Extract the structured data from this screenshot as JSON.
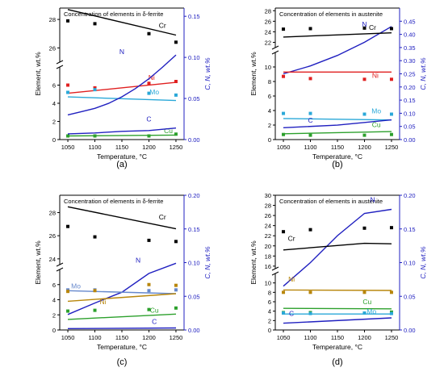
{
  "figure": {
    "panel_tags": [
      "(a)",
      "(b)",
      "(c)",
      "(d)"
    ]
  },
  "chart_data": [
    {
      "type": "line",
      "panel": "(a)",
      "title": "Concentration of elements in δ-ferrite",
      "xlabel": "Temperature, °C",
      "ylabel_left": "Element, wt.%",
      "ylabel_right": "C, N, wt.%",
      "x_ticks": [
        1050,
        1100,
        1150,
        1200,
        1250
      ],
      "xlim": [
        1035,
        1265
      ],
      "y_left_lower": {
        "range": [
          0,
          8
        ],
        "ticks": [
          0,
          2,
          4,
          6
        ]
      },
      "y_left_upper": {
        "range": [
          25,
          28.8
        ],
        "ticks": [
          26,
          28
        ]
      },
      "y_right": {
        "range": [
          0,
          0.16
        ],
        "ticks": [
          0,
          0.05,
          0.1,
          0.15
        ],
        "tick_labels": [
          "0.00",
          "0.05",
          "0.10",
          "0.15"
        ]
      },
      "series": [
        {
          "name": "Cr",
          "axis": "left",
          "color": "#000000",
          "label_at": {
            "x": 1225,
            "y": 27.4
          },
          "line": {
            "x": [
              1050,
              1250
            ],
            "y": [
              28.7,
              26.9
            ]
          },
          "points": {
            "x": [
              1050,
              1100,
              1200,
              1250
            ],
            "y": [
              27.9,
              27.7,
              27.0,
              26.4
            ]
          }
        },
        {
          "name": "Ni",
          "axis": "left",
          "color": "#e02020",
          "label_at": {
            "x": 1205,
            "y": 6.6
          },
          "line": {
            "x": [
              1050,
              1250
            ],
            "y": [
              5.1,
              6.3
            ]
          },
          "points": {
            "x": [
              1050,
              1100,
              1200,
              1250
            ],
            "y": [
              6.0,
              5.7,
              6.2,
              6.4
            ]
          }
        },
        {
          "name": "Mo",
          "axis": "left",
          "color": "#2aa8d8",
          "label_at": {
            "x": 1210,
            "y": 5.0
          },
          "line": {
            "x": [
              1050,
              1250
            ],
            "y": [
              4.7,
              4.3
            ]
          },
          "points": {
            "x": [
              1050,
              1100,
              1200,
              1250
            ],
            "y": [
              5.2,
              5.5,
              5.1,
              4.9
            ]
          }
        },
        {
          "name": "Cu",
          "axis": "left",
          "color": "#2ca02c",
          "label_at": {
            "x": 1236,
            "y": 0.7
          },
          "line": {
            "x": [
              1050,
              1250
            ],
            "y": [
              0.4,
              0.5
            ]
          },
          "points": {
            "x": [
              1050,
              1100,
              1200,
              1250
            ],
            "y": [
              0.4,
              0.4,
              0.4,
              0.6
            ]
          }
        },
        {
          "name": "N",
          "axis": "right",
          "color": "#2020c0",
          "label_at": {
            "x": 1150,
            "y": 0.104
          },
          "line": {
            "x": [
              1050,
              1075,
              1100,
              1125,
              1150,
              1175,
              1200,
              1225,
              1250
            ],
            "y": [
              0.03,
              0.034,
              0.038,
              0.044,
              0.052,
              0.062,
              0.074,
              0.088,
              0.103
            ]
          }
        },
        {
          "name": "C",
          "axis": "right",
          "color": "#2020c0",
          "label_at": {
            "x": 1200,
            "y": 0.022
          },
          "line": {
            "x": [
              1050,
              1100,
              1150,
              1200,
              1250
            ],
            "y": [
              0.007,
              0.008,
              0.01,
              0.011,
              0.014
            ]
          }
        }
      ]
    },
    {
      "type": "line",
      "panel": "(b)",
      "title": "Concentration of elements in austenite",
      "xlabel": "Temperature, °C",
      "ylabel_left": "Element, wt.%",
      "ylabel_right": "C, N, wt.%",
      "x_ticks": [
        1050,
        1100,
        1150,
        1200,
        1250
      ],
      "xlim": [
        1035,
        1265
      ],
      "y_left_lower": {
        "range": [
          0,
          12
        ],
        "ticks": [
          0,
          2,
          4,
          6,
          8,
          10
        ]
      },
      "y_left_upper": {
        "range": [
          21,
          28.5
        ],
        "ticks": [
          22,
          24,
          26,
          28
        ]
      },
      "y_right": {
        "range": [
          0,
          0.5
        ],
        "ticks": [
          0,
          0.05,
          0.1,
          0.15,
          0.2,
          0.25,
          0.3,
          0.35,
          0.4,
          0.45
        ],
        "tick_labels": [
          "0.00",
          "0.05",
          "0.10",
          "0.15",
          "0.20",
          "0.25",
          "0.30",
          "0.35",
          "0.40",
          "0.45"
        ]
      },
      "series": [
        {
          "name": "N",
          "axis": "right",
          "color": "#2020c0",
          "label_at": {
            "x": 1200,
            "y": 0.43
          },
          "line": {
            "x": [
              1050,
              1100,
              1150,
              1200,
              1250
            ],
            "y": [
              0.25,
              0.28,
              0.32,
              0.37,
              0.43
            ]
          }
        },
        {
          "name": "Cr",
          "axis": "left",
          "color": "#000000",
          "label_at": {
            "x": 1215,
            "y": 24.4
          },
          "line": {
            "x": [
              1050,
              1250
            ],
            "y": [
              23.0,
              23.8
            ]
          },
          "points": {
            "x": [
              1050,
              1100,
              1200,
              1250
            ],
            "y": [
              24.5,
              24.6,
              24.7,
              24.6
            ]
          }
        },
        {
          "name": "Ni",
          "axis": "left",
          "color": "#e02020",
          "label_at": {
            "x": 1220,
            "y": 8.5
          },
          "line": {
            "x": [
              1050,
              1250
            ],
            "y": [
              9.3,
              9.3
            ]
          },
          "points": {
            "x": [
              1050,
              1100,
              1200,
              1250
            ],
            "y": [
              8.7,
              8.4,
              8.3,
              8.3
            ]
          }
        },
        {
          "name": "Mo",
          "axis": "left",
          "color": "#2aa8d8",
          "label_at": {
            "x": 1222,
            "y": 3.6
          },
          "line": {
            "x": [
              1050,
              1250
            ],
            "y": [
              2.9,
              2.7
            ]
          },
          "points": {
            "x": [
              1050,
              1100,
              1200,
              1250
            ],
            "y": [
              3.6,
              3.6,
              3.5,
              3.5
            ]
          }
        },
        {
          "name": "C",
          "axis": "right",
          "color": "#2020c0",
          "label_at": {
            "x": 1100,
            "y": 0.065
          },
          "line": {
            "x": [
              1050,
              1150,
              1250
            ],
            "y": [
              0.045,
              0.055,
              0.075
            ]
          }
        },
        {
          "name": "Cu",
          "axis": "left",
          "color": "#2ca02c",
          "label_at": {
            "x": 1222,
            "y": 1.7
          },
          "line": {
            "x": [
              1050,
              1250
            ],
            "y": [
              0.8,
              1.1
            ]
          },
          "points": {
            "x": [
              1050,
              1100,
              1200,
              1250
            ],
            "y": [
              0.7,
              0.6,
              0.6,
              0.7
            ]
          }
        }
      ]
    },
    {
      "type": "line",
      "panel": "(c)",
      "title": "Concentration of elements in δ-ferrite",
      "xlabel": "Temperature, °C",
      "ylabel_left": "Element, wt.%",
      "ylabel_right": "C, N, wt.%",
      "x_ticks": [
        1050,
        1100,
        1150,
        1200,
        1250
      ],
      "xlim": [
        1035,
        1265
      ],
      "y_left_lower": {
        "range": [
          0,
          8
        ],
        "ticks": [
          0,
          2,
          4,
          6
        ]
      },
      "y_left_upper": {
        "range": [
          23.5,
          29.5
        ],
        "ticks": [
          24,
          26,
          28
        ]
      },
      "y_right": {
        "range": [
          0,
          0.2
        ],
        "ticks": [
          0,
          0.05,
          0.1,
          0.15,
          0.2
        ],
        "tick_labels": [
          "0.00",
          "0.05",
          "0.10",
          "0.15",
          "0.20"
        ]
      },
      "series": [
        {
          "name": "Cr",
          "axis": "left",
          "color": "#000000",
          "label_at": {
            "x": 1225,
            "y": 27.4
          },
          "line": {
            "x": [
              1050,
              1250
            ],
            "y": [
              28.5,
              26.6
            ]
          },
          "points": {
            "x": [
              1050,
              1100,
              1200,
              1250
            ],
            "y": [
              26.8,
              25.9,
              25.6,
              25.5
            ]
          }
        },
        {
          "name": "N",
          "axis": "right",
          "color": "#2020c0",
          "label_at": {
            "x": 1180,
            "y": 0.1
          },
          "line": {
            "x": [
              1050,
              1100,
              1150,
              1200,
              1250
            ],
            "y": [
              0.023,
              0.04,
              0.056,
              0.084,
              0.099
            ]
          }
        },
        {
          "name": "Mo",
          "axis": "left",
          "color": "#6688cc",
          "label_at": {
            "x": 1065,
            "y": 5.5
          },
          "line": {
            "x": [
              1050,
              1250
            ],
            "y": [
              5.2,
              4.8
            ]
          },
          "points": {
            "x": [
              1050,
              1100,
              1200,
              1250
            ],
            "y": [
              5.3,
              5.3,
              5.2,
              5.3
            ]
          }
        },
        {
          "name": "Ni",
          "axis": "left",
          "color": "#b8860b",
          "label_at": {
            "x": 1115,
            "y": 3.4
          },
          "line": {
            "x": [
              1050,
              1250
            ],
            "y": [
              3.8,
              4.8
            ]
          },
          "points": {
            "x": [
              1050,
              1100,
              1200,
              1250
            ],
            "y": [
              5.1,
              5.2,
              6.0,
              5.9
            ]
          }
        },
        {
          "name": "Cu",
          "axis": "left",
          "color": "#2ca02c",
          "label_at": {
            "x": 1210,
            "y": 2.3
          },
          "line": {
            "x": [
              1050,
              1250
            ],
            "y": [
              1.4,
              2.1
            ]
          },
          "points": {
            "x": [
              1050,
              1100,
              1200,
              1250
            ],
            "y": [
              2.5,
              2.6,
              2.7,
              2.9
            ]
          }
        },
        {
          "name": "C",
          "axis": "right",
          "color": "#2020c0",
          "label_at": {
            "x": 1210,
            "y": 0.009
          },
          "line": {
            "x": [
              1050,
              1250
            ],
            "y": [
              0.002,
              0.003
            ]
          }
        }
      ]
    },
    {
      "type": "line",
      "panel": "(d)",
      "title": "Concentration of elements in austenite",
      "xlabel": "Temperature, °C",
      "ylabel_left": "Element, wt.%",
      "ylabel_right": "C, N, wt.%",
      "x_ticks": [
        1050,
        1100,
        1150,
        1200,
        1250
      ],
      "xlim": [
        1035,
        1265
      ],
      "y_left_lower": {
        "range": [
          0,
          12
        ],
        "ticks": [
          0,
          2,
          4,
          6,
          8,
          10
        ]
      },
      "y_left_upper": {
        "range": [
          15.5,
          30
        ],
        "ticks": [
          16,
          18,
          20,
          22,
          24,
          26,
          28,
          30
        ]
      },
      "y_right": {
        "range": [
          0,
          0.2
        ],
        "ticks": [
          0,
          0.05,
          0.1,
          0.15,
          0.2
        ],
        "tick_labels": [
          "0.00",
          "0.05",
          "0.10",
          "0.15",
          "0.20"
        ]
      },
      "series": [
        {
          "name": "N",
          "axis": "right",
          "color": "#2020c0",
          "label_at": {
            "x": 1215,
            "y": 0.19
          },
          "line": {
            "x": [
              1050,
              1100,
              1150,
              1200,
              1250
            ],
            "y": [
              0.065,
              0.1,
              0.14,
              0.173,
              0.179
            ]
          }
        },
        {
          "name": "Cr",
          "axis": "left",
          "color": "#000000",
          "label_at": {
            "x": 1065,
            "y": 21.0
          },
          "line": {
            "x": [
              1050,
              1200,
              1250
            ],
            "y": [
              19.2,
              20.5,
              20.4
            ]
          },
          "points": {
            "x": [
              1050,
              1100,
              1200,
              1250
            ],
            "y": [
              22.8,
              23.2,
              23.5,
              23.6
            ]
          }
        },
        {
          "name": "Ni",
          "axis": "left",
          "color": "#b8860b",
          "label_at": {
            "x": 1065,
            "y": 10.3
          },
          "line": {
            "x": [
              1050,
              1250
            ],
            "y": [
              8.5,
              8.4
            ]
          },
          "points": {
            "x": [
              1050,
              1100,
              1200,
              1250
            ],
            "y": [
              8.0,
              8.0,
              8.0,
              8.0
            ]
          }
        },
        {
          "name": "Cu",
          "axis": "left",
          "color": "#2ca02c",
          "label_at": {
            "x": 1205,
            "y": 5.5
          },
          "line": {
            "x": [
              1050,
              1250
            ],
            "y": [
              4.6,
              4.5
            ]
          },
          "points": {
            "x": [
              1050,
              1100,
              1200,
              1250
            ],
            "y": [
              3.7,
              3.7,
              3.6,
              3.8
            ]
          }
        },
        {
          "name": "Mo",
          "axis": "left",
          "color": "#2aa8d8",
          "label_at": {
            "x": 1213,
            "y": 3.4
          },
          "line": {
            "x": [
              1050,
              1250
            ],
            "y": [
              3.4,
              3.4
            ]
          },
          "points": {
            "x": [
              1050,
              1100,
              1200,
              1250
            ],
            "y": [
              3.6,
              3.5,
              3.6,
              3.5
            ]
          }
        },
        {
          "name": "C",
          "axis": "right",
          "color": "#2020c0",
          "label_at": {
            "x": 1065,
            "y": 0.021
          },
          "line": {
            "x": [
              1050,
              1250
            ],
            "y": [
              0.01,
              0.018
            ]
          }
        }
      ]
    }
  ]
}
